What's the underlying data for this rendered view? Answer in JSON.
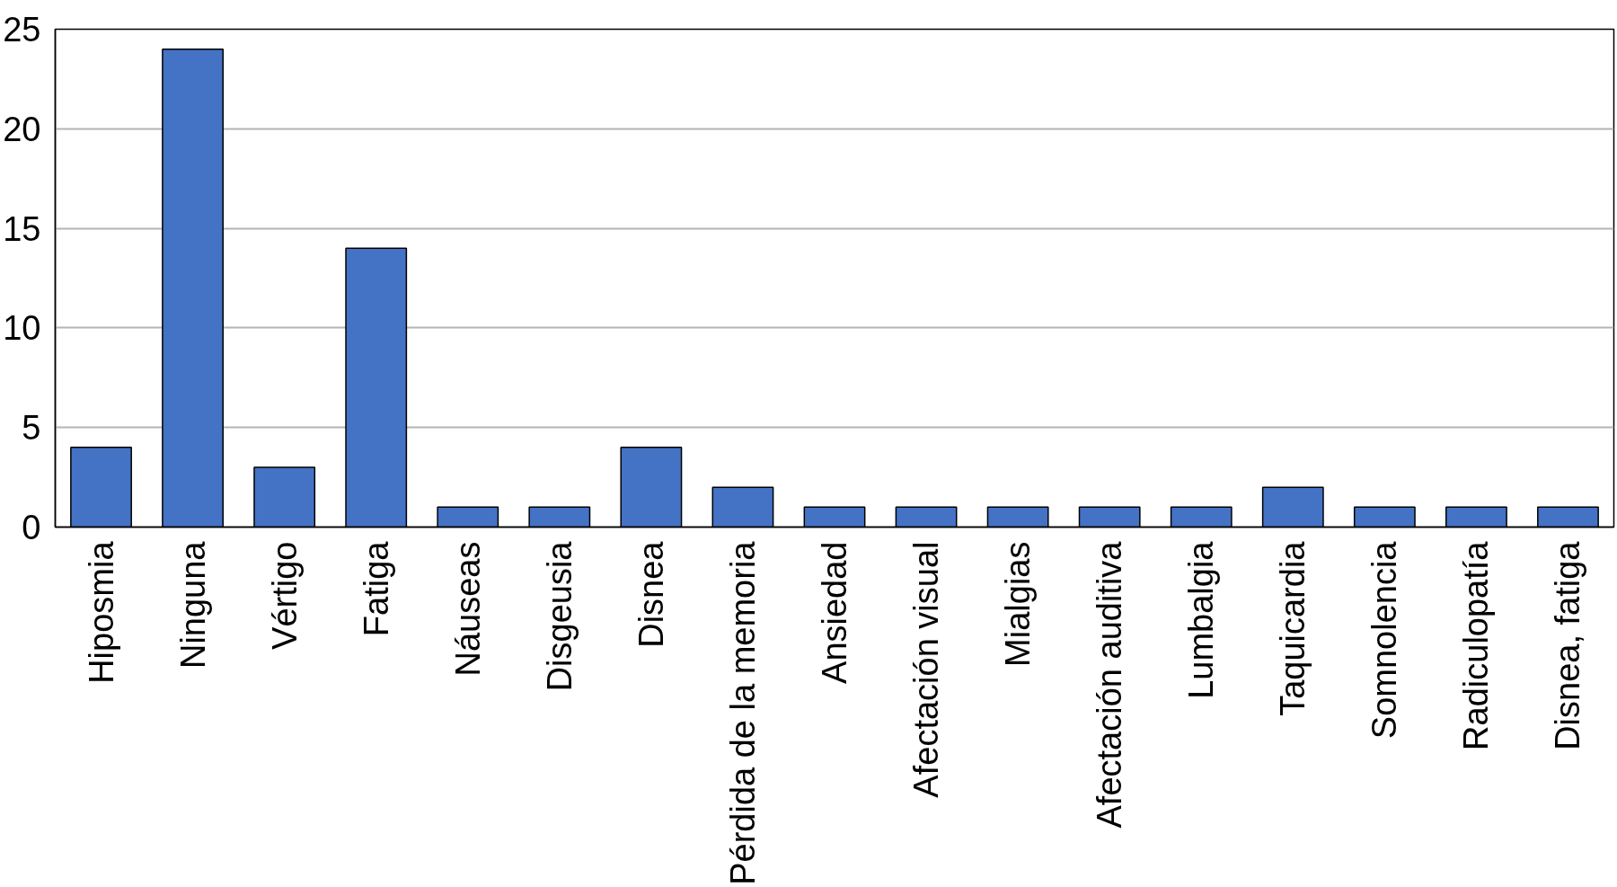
{
  "chart_data": {
    "type": "bar",
    "categories": [
      "Hiposmia",
      "Ninguna",
      "Vértigo",
      "Fatiga",
      "Náuseas",
      "Disgeusia",
      "Disnea",
      "Pérdida de la memoria",
      "Ansiedad",
      "Afectación visual",
      "Mialgias",
      "Afectación auditiva",
      "Lumbalgia",
      "Taquicardia",
      "Somnolencia",
      "Radiculopatía",
      "Disnea, fatiga"
    ],
    "values": [
      4,
      24,
      3,
      14,
      1,
      1,
      4,
      2,
      1,
      1,
      1,
      1,
      1,
      2,
      1,
      1,
      1
    ],
    "color": "#4472c4",
    "ylim": [
      0,
      25
    ],
    "yticks": [
      0,
      5,
      10,
      15,
      20,
      25
    ],
    "grid": "y"
  }
}
